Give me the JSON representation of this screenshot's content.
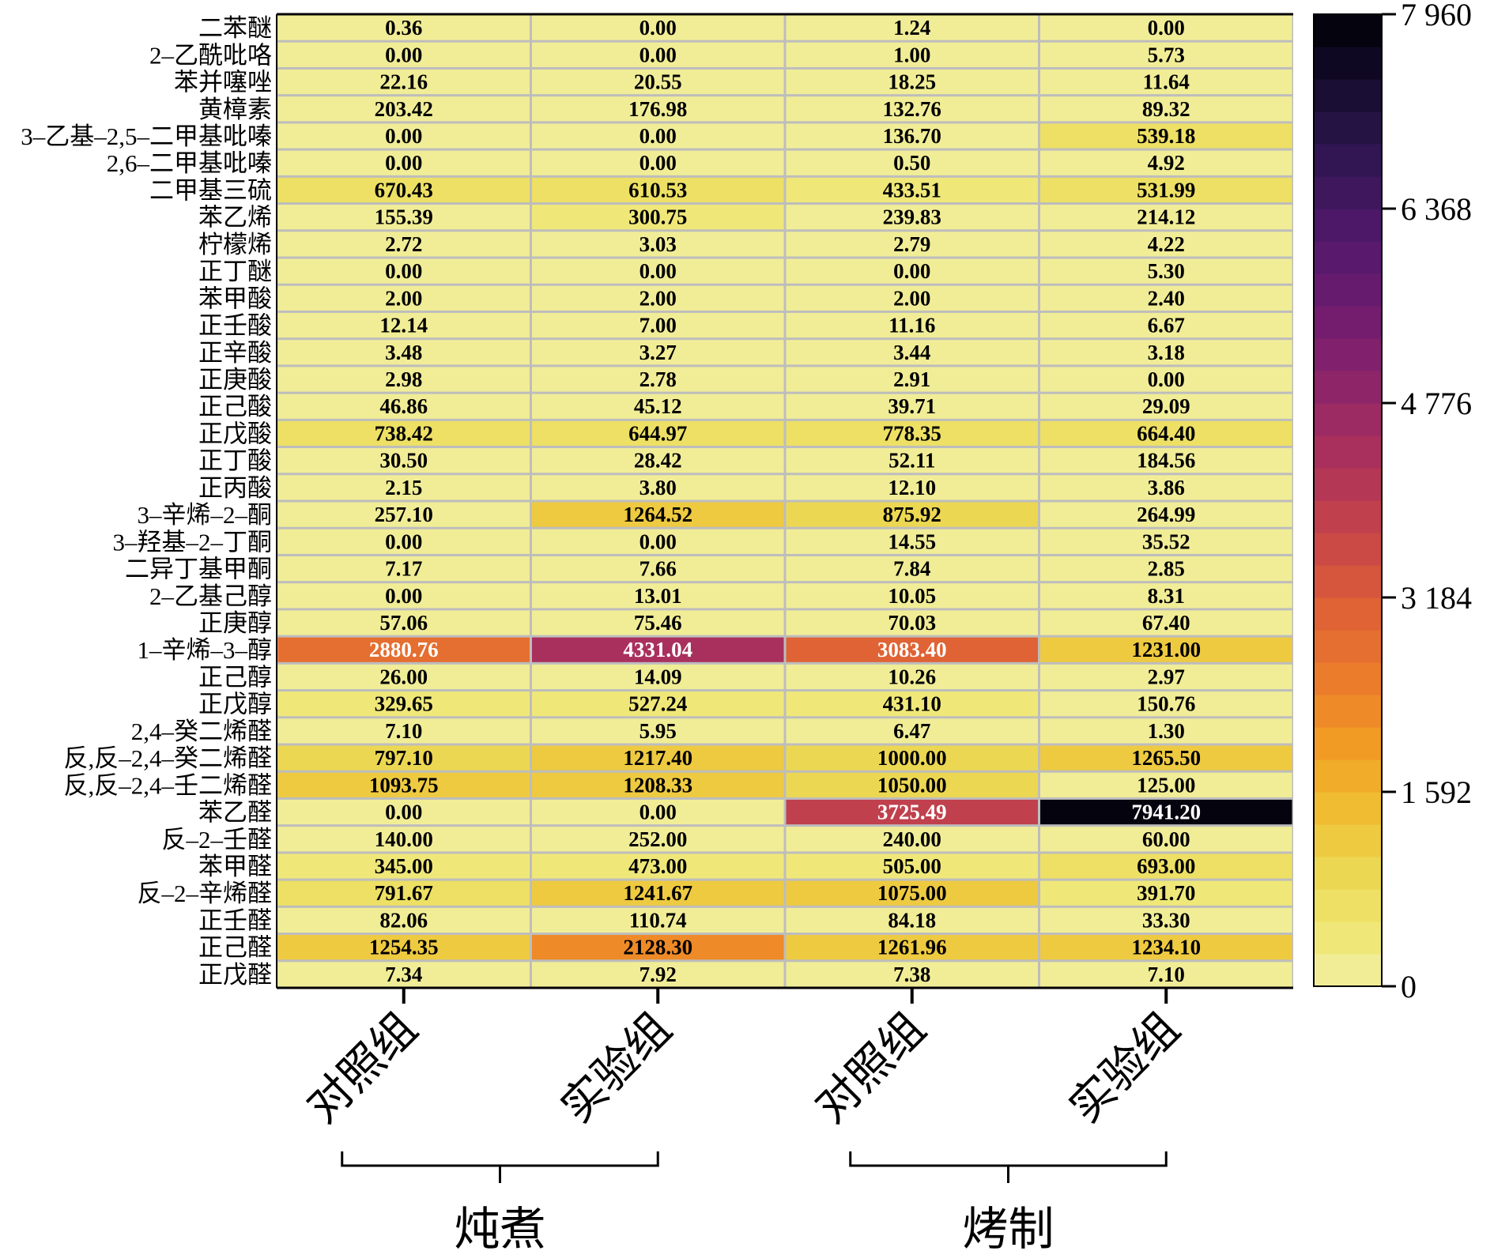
{
  "chart_data": {
    "type": "heatmap",
    "title": "",
    "columns": [
      "对照组",
      "实验组",
      "对照组",
      "实验组"
    ],
    "groups": [
      {
        "label": "炖煮",
        "columns": [
          0,
          1
        ]
      },
      {
        "label": "烤制",
        "columns": [
          2,
          3
        ]
      }
    ],
    "rows": [
      "二苯醚",
      "2–乙酰吡咯",
      "苯并噻唑",
      "黄樟素",
      "3–乙基–2,5–二甲基吡嗪",
      "2,6–二甲基吡嗪",
      "二甲基三硫",
      "苯乙烯",
      "柠檬烯",
      "正丁醚",
      "苯甲酸",
      "正壬酸",
      "正辛酸",
      "正庚酸",
      "正己酸",
      "正戊酸",
      "正丁酸",
      "正丙酸",
      "3–辛烯–2–酮",
      "3–羟基–2–丁酮",
      "二异丁基甲酮",
      "2–乙基己醇",
      "正庚醇",
      "1–辛烯–3–醇",
      "正己醇",
      "正戊醇",
      "2,4–癸二烯醛",
      "反,反–2,4–癸二烯醛",
      "反,反–2,4–壬二烯醛",
      "苯乙醛",
      "反–2–壬醛",
      "苯甲醛",
      "反–2–辛烯醛",
      "正壬醛",
      "正己醛",
      "正戊醛"
    ],
    "values": [
      [
        "0.36",
        "0.00",
        "1.24",
        "0.00"
      ],
      [
        "0.00",
        "0.00",
        "1.00",
        "5.73"
      ],
      [
        "22.16",
        "20.55",
        "18.25",
        "11.64"
      ],
      [
        "203.42",
        "176.98",
        "132.76",
        "89.32"
      ],
      [
        "0.00",
        "0.00",
        "136.70",
        "539.18"
      ],
      [
        "0.00",
        "0.00",
        "0.50",
        "4.92"
      ],
      [
        "670.43",
        "610.53",
        "433.51",
        "531.99"
      ],
      [
        "155.39",
        "300.75",
        "239.83",
        "214.12"
      ],
      [
        "2.72",
        "3.03",
        "2.79",
        "4.22"
      ],
      [
        "0.00",
        "0.00",
        "0.00",
        "5.30"
      ],
      [
        "2.00",
        "2.00",
        "2.00",
        "2.40"
      ],
      [
        "12.14",
        "7.00",
        "11.16",
        "6.67"
      ],
      [
        "3.48",
        "3.27",
        "3.44",
        "3.18"
      ],
      [
        "2.98",
        "2.78",
        "2.91",
        "0.00"
      ],
      [
        "46.86",
        "45.12",
        "39.71",
        "29.09"
      ],
      [
        "738.42",
        "644.97",
        "778.35",
        "664.40"
      ],
      [
        "30.50",
        "28.42",
        "52.11",
        "184.56"
      ],
      [
        "2.15",
        "3.80",
        "12.10",
        "3.86"
      ],
      [
        "257.10",
        "1264.52",
        "875.92",
        "264.99"
      ],
      [
        "0.00",
        "0.00",
        "14.55",
        "35.52"
      ],
      [
        "7.17",
        "7.66",
        "7.84",
        "2.85"
      ],
      [
        "0.00",
        "13.01",
        "10.05",
        "8.31"
      ],
      [
        "57.06",
        "75.46",
        "70.03",
        "67.40"
      ],
      [
        "2880.76",
        "4331.04",
        "3083.40",
        "1231.00"
      ],
      [
        "26.00",
        "14.09",
        "10.26",
        "2.97"
      ],
      [
        "329.65",
        "527.24",
        "431.10",
        "150.76"
      ],
      [
        "7.10",
        "5.95",
        "6.47",
        "1.30"
      ],
      [
        "797.10",
        "1217.40",
        "1000.00",
        "1265.50"
      ],
      [
        "1093.75",
        "1208.33",
        "1050.00",
        "125.00"
      ],
      [
        "0.00",
        "0.00",
        "3725.49",
        "7941.20"
      ],
      [
        "140.00",
        "252.00",
        "240.00",
        "60.00"
      ],
      [
        "345.00",
        "473.00",
        "505.00",
        "693.00"
      ],
      [
        "791.67",
        "1241.67",
        "1075.00",
        "391.70"
      ],
      [
        "82.06",
        "110.74",
        "84.18",
        "33.30"
      ],
      [
        "1254.35",
        "2128.30",
        "1261.96",
        "1234.10"
      ],
      [
        "7.34",
        "7.92",
        "7.38",
        "7.10"
      ]
    ],
    "colorbar": {
      "range": [
        0,
        7960
      ],
      "ticks": [
        0,
        1592,
        3184,
        4776,
        6368,
        7960
      ],
      "tick_labels": [
        "0",
        "1 592",
        "3 184",
        "4 776",
        "6 368",
        "7 960"
      ],
      "colormap": "inferno_r",
      "levels": 30
    },
    "grid": false
  }
}
